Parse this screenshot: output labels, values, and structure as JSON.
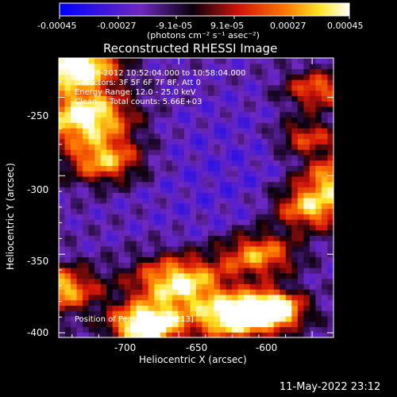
{
  "colorbar": {
    "tick_labels": [
      "-0.00045",
      "-0.00027",
      "-9.1e-05",
      "9.1e-05",
      "0.00027",
      "0.00045"
    ],
    "unit_label": "(photons cm⁻² s⁻¹ asec⁻²)"
  },
  "chart_data": {
    "type": "heatmap",
    "title": "Reconstructed RHESSI Image",
    "xlabel": "Heliocentric X (arcsec)",
    "ylabel": "Heliocentric Y (arcsec)",
    "xlim": [
      -745,
      -642
    ],
    "ylim": [
      -403,
      -225
    ],
    "x_ticks": [
      -700,
      -650,
      -600
    ],
    "y_ticks": [
      -250,
      -300,
      -350,
      -400
    ],
    "colormap": "RHESSI blue-black-red-yellow-white",
    "color_range": [
      -0.00045,
      0.00045
    ],
    "annotations": [
      "21-Jun-2012 10:52:04.000 to 10:58:04.000",
      "Detectors: 3F 5F 6F 7F 8F, Att 0",
      "Energy Range: 12.0 - 25.0 keV",
      "Clean     Total counts: 5.66E+03"
    ],
    "peak_label": "Position of Peak = [-732,-213]"
  },
  "footer": {
    "timestamp": "11-May-2022 23:12"
  },
  "colors": {
    "background": "#000000",
    "text": "#ffffff"
  }
}
